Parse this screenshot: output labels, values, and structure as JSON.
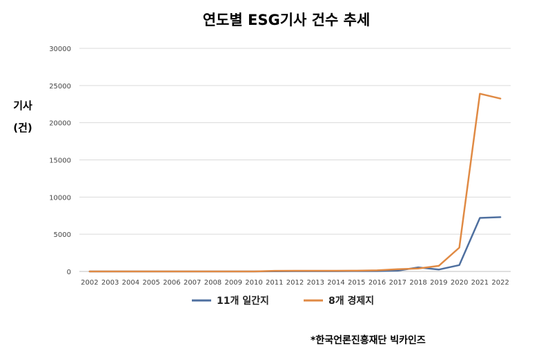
{
  "chart_data": {
    "type": "line",
    "title": "연도별 ESG기사 건수 추세",
    "ylabel": [
      "기사",
      "(건)"
    ],
    "xlabel": "",
    "ylim": [
      0,
      30000
    ],
    "yticks": [
      "0",
      "5000",
      "10000",
      "15000",
      "20000",
      "25000",
      "30000"
    ],
    "categories": [
      "2002",
      "2003",
      "2004",
      "2005",
      "2006",
      "2007",
      "2008",
      "2009",
      "2010",
      "2011",
      "2012",
      "2013",
      "2014",
      "2015",
      "2016",
      "2017",
      "2018",
      "2019",
      "2020",
      "2021",
      "2022"
    ],
    "series": [
      {
        "name": "11개 일간지",
        "color": "#4e6f9f",
        "values": [
          0,
          0,
          0,
          0,
          0,
          0,
          0,
          0,
          0,
          30,
          40,
          40,
          40,
          50,
          50,
          100,
          550,
          250,
          850,
          7200,
          7300
        ]
      },
      {
        "name": "8개 경제지",
        "color": "#e08a44",
        "values": [
          0,
          0,
          0,
          0,
          0,
          0,
          0,
          0,
          0,
          80,
          90,
          90,
          90,
          100,
          150,
          300,
          400,
          750,
          3200,
          23900,
          23250
        ]
      }
    ],
    "grid": true,
    "legend": "bottom"
  },
  "source_note": "*한국언론진흥재단 빅카인즈"
}
